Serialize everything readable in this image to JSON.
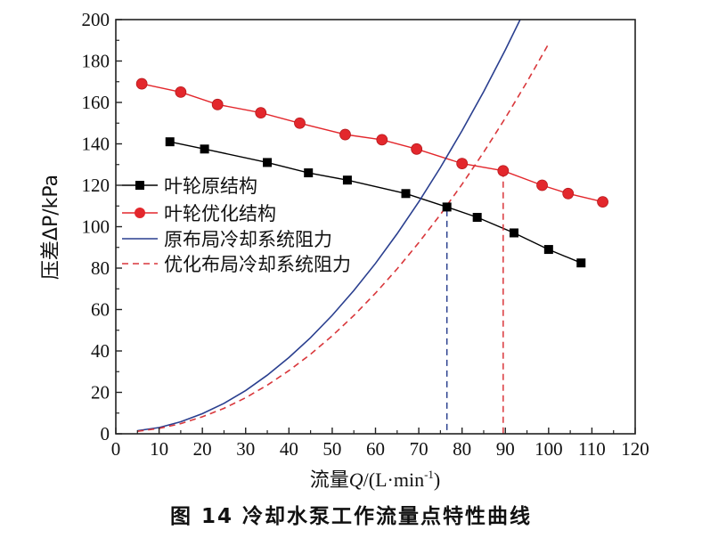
{
  "chart_data": {
    "type": "line",
    "xlabel_prefix": "流量",
    "xlabel_var": "Q",
    "xlabel_unit_open": "/(L·min",
    "xlabel_unit_sup": "-1",
    "xlabel_unit_close": ")",
    "ylabel": "压差ΔP/kPa",
    "xlim": [
      0,
      120
    ],
    "ylim": [
      0,
      200
    ],
    "xticks": [
      0,
      10,
      20,
      30,
      40,
      50,
      60,
      70,
      80,
      90,
      100,
      110,
      120
    ],
    "yticks": [
      0,
      20,
      40,
      60,
      80,
      100,
      120,
      140,
      160,
      180,
      200
    ],
    "grid": false,
    "legend_position": "middle-left",
    "series": [
      {
        "name": "叶轮原结构",
        "color": "#000000",
        "marker": "square",
        "line": "solid",
        "x": [
          12.5,
          20.5,
          35,
          44.5,
          53.5,
          67,
          76.5,
          83.5,
          92,
          100,
          107.5
        ],
        "y": [
          141,
          137.5,
          131,
          126,
          122.5,
          116,
          109.5,
          104.5,
          97,
          89,
          82.5
        ]
      },
      {
        "name": "叶轮优化结构",
        "color": "#e3272c",
        "marker": "circle",
        "line": "solid",
        "x": [
          6,
          15,
          23.5,
          33.5,
          42.5,
          53,
          61.5,
          69.5,
          80,
          89.5,
          98.5,
          104.5,
          112.5
        ],
        "y": [
          169,
          165,
          159,
          155,
          150,
          144.5,
          142,
          137.5,
          130.5,
          127,
          120,
          116,
          112
        ]
      },
      {
        "name": "原布局冷却系统阻力",
        "color": "#2a3f8f",
        "marker": "none",
        "line": "solid",
        "x": [
          5,
          10,
          15,
          20,
          25,
          30,
          35,
          40,
          45,
          50,
          55,
          60,
          65,
          70,
          75,
          80,
          85,
          90,
          95,
          100
        ],
        "y": [
          1.5,
          3.0,
          5.8,
          9.7,
          14.7,
          20.9,
          28.3,
          36.8,
          46.4,
          57.2,
          69.2,
          82.3,
          96.6,
          112.0,
          128.6,
          146.4,
          165.3,
          185.4,
          206.7,
          229.1
        ]
      },
      {
        "name": "优化布局冷却系统阻力",
        "color": "#d9373b",
        "marker": "none",
        "line": "dashed",
        "x": [
          5,
          10,
          15,
          20,
          25,
          30,
          35,
          40,
          45,
          50,
          55,
          60,
          65,
          70,
          75,
          80,
          85,
          90,
          95,
          100
        ],
        "y": [
          1.2,
          2.6,
          4.9,
          8.2,
          12.3,
          17.4,
          23.5,
          30.5,
          38.4,
          47.3,
          57.1,
          67.9,
          79.6,
          92.3,
          105.9,
          120.5,
          136.0,
          152.5,
          169.9,
          188.3
        ]
      }
    ],
    "operating_points": [
      {
        "x": 76.5,
        "y": 108,
        "color": "#2a3f8f"
      },
      {
        "x": 89.5,
        "y": 127,
        "color": "#d9373b"
      }
    ]
  },
  "caption": "图 14   冷却水泵工作流量点特性曲线"
}
